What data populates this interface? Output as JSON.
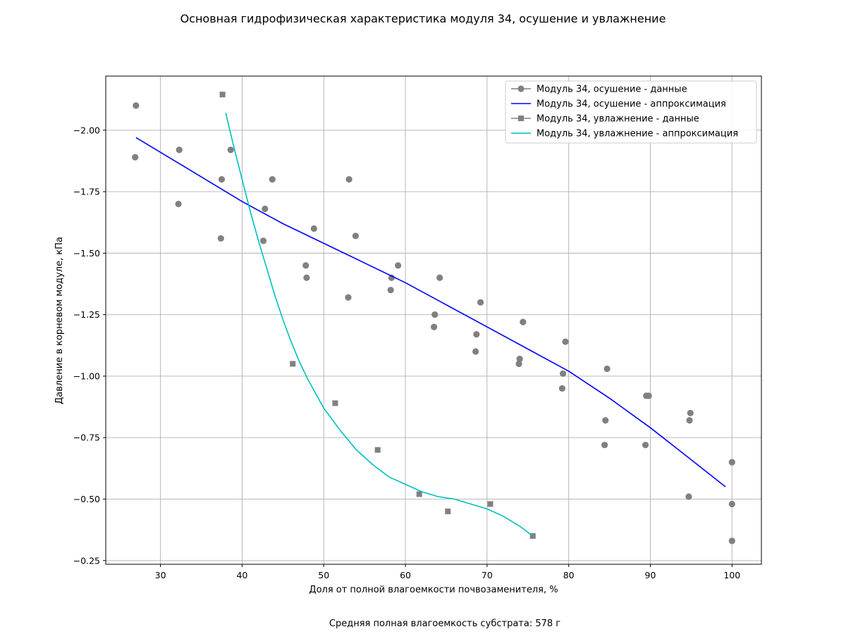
{
  "chart_data": {
    "type": "scatter",
    "title": "Основная гидрофизическая характеристика модуля 34, осушение и увлажнение",
    "xlabel": "Доля от полной влагоемкости почвозаменителя, %",
    "ylabel": "Давление в корневом модуле, кПа",
    "footnote": "Средняя полная влагоемкость субстрата: 578 г",
    "xlim": [
      23.3,
      103.6
    ],
    "ylim": [
      -0.235,
      -2.22
    ],
    "y_inverted": true,
    "xticks": [
      30,
      40,
      50,
      60,
      70,
      80,
      90,
      100
    ],
    "xtick_labels": [
      "30",
      "40",
      "50",
      "60",
      "70",
      "80",
      "90",
      "100"
    ],
    "yticks": [
      -0.25,
      -0.5,
      -0.75,
      -1.0,
      -1.25,
      -1.5,
      -1.75,
      -2.0
    ],
    "ytick_labels": [
      "−0.25",
      "−0.50",
      "−0.75",
      "−1.00",
      "−1.25",
      "−1.50",
      "−1.75",
      "−2.00"
    ],
    "grid": true,
    "legend_position": "top-right",
    "series": [
      {
        "name": "Модуль 34, осушение - данные",
        "kind": "points",
        "marker": "circle",
        "color": "#808080",
        "points": [
          [
            26.9,
            -1.89
          ],
          [
            27.0,
            -2.1
          ],
          [
            32.2,
            -1.7
          ],
          [
            32.3,
            -1.92
          ],
          [
            37.4,
            -1.56
          ],
          [
            37.5,
            -1.8
          ],
          [
            38.6,
            -1.92
          ],
          [
            42.6,
            -1.55
          ],
          [
            42.8,
            -1.68
          ],
          [
            43.7,
            -1.8
          ],
          [
            47.8,
            -1.45
          ],
          [
            47.9,
            -1.4
          ],
          [
            48.8,
            -1.6
          ],
          [
            53.0,
            -1.32
          ],
          [
            53.1,
            -1.8
          ],
          [
            53.9,
            -1.57
          ],
          [
            58.2,
            -1.35
          ],
          [
            58.3,
            -1.4
          ],
          [
            59.1,
            -1.45
          ],
          [
            63.5,
            -1.2
          ],
          [
            63.6,
            -1.25
          ],
          [
            64.2,
            -1.4
          ],
          [
            68.6,
            -1.1
          ],
          [
            68.7,
            -1.17
          ],
          [
            69.2,
            -1.3
          ],
          [
            73.9,
            -1.05
          ],
          [
            74.0,
            -1.07
          ],
          [
            74.4,
            -1.22
          ],
          [
            79.2,
            -0.95
          ],
          [
            79.3,
            -1.01
          ],
          [
            79.6,
            -1.14
          ],
          [
            84.4,
            -0.72
          ],
          [
            84.5,
            -0.82
          ],
          [
            84.7,
            -1.03
          ],
          [
            89.4,
            -0.72
          ],
          [
            89.5,
            -0.92
          ],
          [
            89.8,
            -0.92
          ],
          [
            94.7,
            -0.51
          ],
          [
            94.8,
            -0.82
          ],
          [
            94.9,
            -0.85
          ],
          [
            100.0,
            -0.33
          ],
          [
            100.0,
            -0.48
          ],
          [
            100.0,
            -0.65
          ]
        ]
      },
      {
        "name": "Модуль 34, осушение - аппроксимация",
        "kind": "line",
        "color": "#0000ff",
        "points": [
          [
            27.0,
            -1.97
          ],
          [
            30.0,
            -1.91
          ],
          [
            35.0,
            -1.81
          ],
          [
            40.0,
            -1.71
          ],
          [
            45.0,
            -1.62
          ],
          [
            50.0,
            -1.54
          ],
          [
            55.0,
            -1.46
          ],
          [
            60.0,
            -1.38
          ],
          [
            65.0,
            -1.29
          ],
          [
            70.0,
            -1.2
          ],
          [
            75.0,
            -1.11
          ],
          [
            80.0,
            -1.02
          ],
          [
            85.0,
            -0.91
          ],
          [
            90.0,
            -0.79
          ],
          [
            95.0,
            -0.66
          ],
          [
            99.2,
            -0.55
          ]
        ]
      },
      {
        "name": "Модуль 34, увлажнение - данные",
        "kind": "points",
        "marker": "square",
        "color": "#808080",
        "points": [
          [
            37.6,
            -2.145
          ],
          [
            46.2,
            -1.05
          ],
          [
            51.4,
            -0.89
          ],
          [
            56.6,
            -0.7
          ],
          [
            61.7,
            -0.52
          ],
          [
            65.2,
            -0.45
          ],
          [
            70.4,
            -0.48
          ],
          [
            75.6,
            -0.35
          ]
        ]
      },
      {
        "name": "Модуль 34, увлажнение - аппроксимация",
        "kind": "line",
        "color": "#00bfbf",
        "points": [
          [
            38.0,
            -2.07
          ],
          [
            39.0,
            -1.93
          ],
          [
            40.0,
            -1.8
          ],
          [
            41.0,
            -1.67
          ],
          [
            42.0,
            -1.55
          ],
          [
            43.0,
            -1.44
          ],
          [
            44.0,
            -1.33
          ],
          [
            45.0,
            -1.23
          ],
          [
            46.0,
            -1.14
          ],
          [
            47.0,
            -1.06
          ],
          [
            48.0,
            -0.99
          ],
          [
            49.0,
            -0.93
          ],
          [
            50.0,
            -0.87
          ],
          [
            52.0,
            -0.78
          ],
          [
            54.0,
            -0.7
          ],
          [
            56.0,
            -0.64
          ],
          [
            58.0,
            -0.59
          ],
          [
            60.0,
            -0.56
          ],
          [
            62.0,
            -0.53
          ],
          [
            64.0,
            -0.51
          ],
          [
            66.0,
            -0.5
          ],
          [
            68.0,
            -0.48
          ],
          [
            70.0,
            -0.46
          ],
          [
            72.0,
            -0.43
          ],
          [
            74.0,
            -0.39
          ],
          [
            75.6,
            -0.35
          ]
        ]
      }
    ]
  }
}
